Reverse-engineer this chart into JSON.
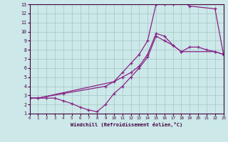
{
  "xlabel": "Windchill (Refroidissement éolien,°C)",
  "background_color": "#cce8e8",
  "grid_color": "#aacccc",
  "line_color": "#882288",
  "xlim": [
    0,
    23
  ],
  "ylim": [
    1,
    13
  ],
  "xticks": [
    0,
    1,
    2,
    3,
    4,
    5,
    6,
    7,
    8,
    9,
    10,
    11,
    12,
    13,
    14,
    15,
    16,
    17,
    18,
    19,
    20,
    21,
    22,
    23
  ],
  "yticks": [
    1,
    2,
    3,
    4,
    5,
    6,
    7,
    8,
    9,
    10,
    11,
    12,
    13
  ],
  "curve1_x": [
    0,
    2,
    3,
    4,
    5,
    6,
    7,
    8,
    9,
    10,
    11,
    12,
    13,
    14,
    15,
    16,
    17,
    18,
    19,
    20,
    21,
    22,
    23
  ],
  "curve1_y": [
    2.7,
    2.7,
    2.7,
    2.4,
    2.1,
    1.7,
    1.4,
    1.2,
    2.0,
    3.2,
    4.0,
    5.0,
    6.0,
    7.2,
    9.5,
    9.0,
    8.5,
    7.8,
    8.3,
    8.3,
    8.0,
    7.8,
    7.5
  ],
  "curve2_x": [
    0,
    1,
    10,
    11,
    12,
    13,
    14,
    15,
    15,
    16,
    17,
    18,
    19,
    22,
    23
  ],
  "curve2_y": [
    2.7,
    2.7,
    4.5,
    5.5,
    6.5,
    7.5,
    9.0,
    13.0,
    13.0,
    13.0,
    13.0,
    13.3,
    12.8,
    12.5,
    7.5
  ],
  "curve3_x": [
    0,
    1,
    4,
    9,
    11,
    12,
    13,
    14,
    15,
    16,
    17,
    18,
    22,
    23
  ],
  "curve3_y": [
    2.7,
    2.7,
    3.2,
    4.0,
    5.0,
    5.5,
    6.2,
    7.5,
    9.8,
    9.5,
    8.5,
    7.8,
    7.8,
    7.5
  ]
}
